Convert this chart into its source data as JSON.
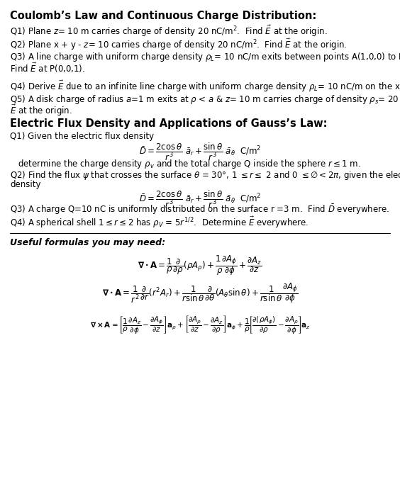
{
  "title1": "Coulomb’s Law and Continuous Charge Distribution:",
  "title2": "Electric Flux Density and Applications of Gauss’s Law:",
  "title3": "Useful formulas you may need:",
  "bg_color": "#ffffff",
  "text_color": "#000000",
  "body_fs": 8.5,
  "title_fs": 10.5,
  "formula_fs": 8.5,
  "useful_title_fs": 9.0
}
